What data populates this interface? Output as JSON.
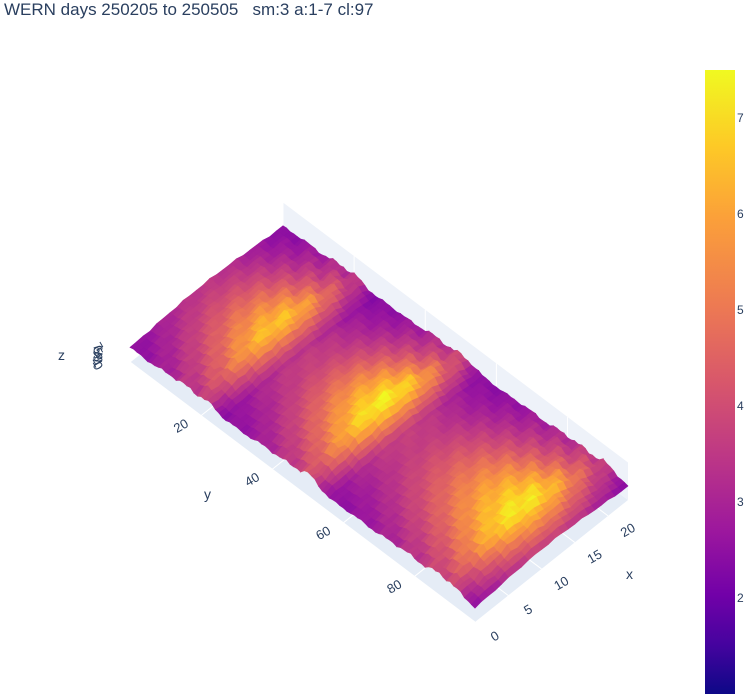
{
  "title": "WERN days 250205 to 250505   sm:3 a:1-7 cl:97",
  "chart_data": {
    "type": "surface",
    "title": "WERN days 250205 to 250505   sm:3 a:1-7 cl:97",
    "xlabel": "x",
    "ylabel": "y",
    "zlabel": "z",
    "x_ticks": [
      "0",
      "5",
      "10",
      "15",
      "20"
    ],
    "y_ticks": [
      "20",
      "40",
      "60",
      "80"
    ],
    "z_ticks": [
      "0",
      "1",
      "2",
      "3",
      "4",
      "5",
      "6",
      "7"
    ],
    "xlim": [
      0,
      23
    ],
    "ylim": [
      0,
      97
    ],
    "zlim": [
      0,
      7.5
    ],
    "colorscale": "plasma",
    "colorbar_ticks": [
      "2",
      "3",
      "4",
      "5",
      "6",
      "7"
    ],
    "colorbar_range": [
      1,
      7.5
    ],
    "ridges": [
      {
        "y_range": [
          0,
          26
        ],
        "peak_z": 6.8
      },
      {
        "y_range": [
          30,
          56
        ],
        "peak_z": 7.5
      },
      {
        "y_range": [
          60,
          97
        ],
        "peak_z": 7.4
      }
    ],
    "troughs": [
      {
        "y": 28,
        "z": 1.2
      },
      {
        "y": 58,
        "z": 1.2
      }
    ]
  },
  "colors": {
    "text": "#2a3f5f",
    "grid": "#e5ecf6"
  }
}
